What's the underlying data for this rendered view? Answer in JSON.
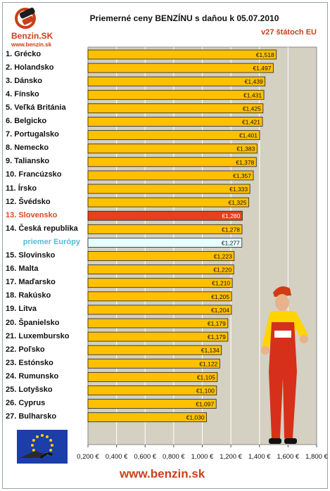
{
  "header": {
    "logo_text": "Benzin.SK",
    "logo_url": "www.benzin.sk",
    "title": "Priemerné ceny BENZÍNU s daňou k 05.07.2010",
    "subtitle": "v27 štátoch EU"
  },
  "footer": {
    "url": "www.benzin.sk"
  },
  "colors": {
    "bar": "#ffc000",
    "highlight": "#e8401c",
    "average": "#e6ffff",
    "plot_bg": "#d4d0c2"
  },
  "chart_data": {
    "type": "bar",
    "orientation": "horizontal",
    "title": "Priemerné ceny BENZÍNU s daňou k 05.07.2010",
    "subtitle": "v27 štátoch EU",
    "xlim": [
      0.2,
      1.8
    ],
    "x_ticks": [
      "0,200 €",
      "0,400 €",
      "0,600 €",
      "0,800 €",
      "1,000 €",
      "1,200 €",
      "1,400 €",
      "1,600 €",
      "1,800 €"
    ],
    "grid": true,
    "categories": [
      "1. Grécko",
      "2. Holandsko",
      "3. Dánsko",
      "4. Fínsko",
      "5. Veľká Británia",
      "6. Belgicko",
      "7. Portugalsko",
      "8. Nemecko",
      "9. Taliansko",
      "10. Francúzsko",
      "11. Írsko",
      "12. Švédsko",
      "13. Slovensko",
      "14. Česká republika",
      "priemer Európy",
      "15. Slovinsko",
      "16. Malta",
      "17. Maďarsko",
      "18. Rakúsko",
      "19. Litva",
      "20. Španielsko",
      "21. Luxembursko",
      "22. Poľsko",
      "23. Estónsko",
      "24. Rumunsko",
      "25. Lotyšsko",
      "26. Cyprus",
      "27. Bulharsko"
    ],
    "values": [
      1.518,
      1.497,
      1.439,
      1.431,
      1.425,
      1.421,
      1.401,
      1.383,
      1.378,
      1.357,
      1.333,
      1.325,
      1.28,
      1.278,
      1.277,
      1.223,
      1.22,
      1.21,
      1.205,
      1.204,
      1.179,
      1.179,
      1.134,
      1.122,
      1.105,
      1.1,
      1.097,
      1.03
    ],
    "data_labels": [
      "€1,518",
      "€1,497",
      "€1,439",
      "€1,431",
      "€1,425",
      "€1,421",
      "€1,401",
      "€1,383",
      "€1,378",
      "€1,357",
      "€1,333",
      "€1,325",
      "€1,280",
      "€1,278",
      "€1,277",
      "€1,223",
      "€1,220",
      "€1,210",
      "€1,205",
      "€1,204",
      "€1,179",
      "€1,179",
      "€1,134",
      "€1,122",
      "€1,105",
      "€1,100",
      "€1,097",
      "€1,030"
    ],
    "highlight_index": 12,
    "average_index": 14
  }
}
